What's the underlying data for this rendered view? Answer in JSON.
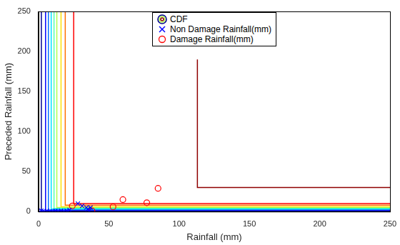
{
  "chart_data": {
    "type": "scatter",
    "x_label": "Rainfall (mm)",
    "y_label": "Preceded Rainfall (mm)",
    "xlim": [
      0,
      250
    ],
    "ylim": [
      0,
      250
    ],
    "xticks": [
      0,
      50,
      100,
      150,
      200,
      250
    ],
    "yticks": [
      0,
      50,
      100,
      150,
      200,
      250
    ],
    "grid": false,
    "legend": "top",
    "contours": {
      "name": "CDF",
      "lines": [
        {
          "color": "#00008f",
          "x": [
            2,
            2,
            250
          ],
          "y": [
            250,
            0.5,
            0.5
          ]
        },
        {
          "color": "#0000ff",
          "x": [
            5,
            5,
            250
          ],
          "y": [
            250,
            1,
            1
          ]
        },
        {
          "color": "#0070ff",
          "x": [
            7,
            7,
            250
          ],
          "y": [
            250,
            2,
            2
          ]
        },
        {
          "color": "#00dfff",
          "x": [
            9,
            9,
            250
          ],
          "y": [
            250,
            3,
            3
          ]
        },
        {
          "color": "#50ffaf",
          "x": [
            11,
            11,
            250
          ],
          "y": [
            250,
            4,
            4
          ]
        },
        {
          "color": "#afff50",
          "x": [
            13,
            13,
            250
          ],
          "y": [
            250,
            5,
            5
          ]
        },
        {
          "color": "#ffdf00",
          "x": [
            16,
            16,
            250
          ],
          "y": [
            250,
            6,
            6
          ]
        },
        {
          "color": "#ff7000",
          "x": [
            19,
            19,
            250
          ],
          "y": [
            250,
            8,
            8
          ]
        },
        {
          "color": "#ff0000",
          "x": [
            25,
            25,
            250
          ],
          "y": [
            250,
            10,
            10
          ]
        },
        {
          "color": "#8f0000",
          "x": [
            113,
            113,
            250
          ],
          "y": [
            190,
            30,
            30
          ]
        }
      ]
    },
    "series": [
      {
        "name": "Non Damage Rainfall(mm)",
        "color": "#0000ff",
        "marker": "x",
        "x": [
          1,
          2,
          3,
          4,
          6,
          8,
          10,
          12,
          14,
          16,
          18,
          20,
          22,
          28,
          31,
          34,
          35,
          37,
          36
        ],
        "y": [
          0,
          1,
          0,
          0,
          1,
          0,
          0,
          1,
          0,
          1,
          0,
          1,
          2,
          10,
          7,
          5,
          3,
          5,
          1
        ]
      },
      {
        "name": "Damage Rainfall(mm)",
        "color": "#ff0000",
        "marker": "circle",
        "x": [
          24,
          38,
          53,
          60,
          77,
          85
        ],
        "y": [
          7,
          1,
          6,
          15,
          11,
          29
        ]
      }
    ]
  }
}
